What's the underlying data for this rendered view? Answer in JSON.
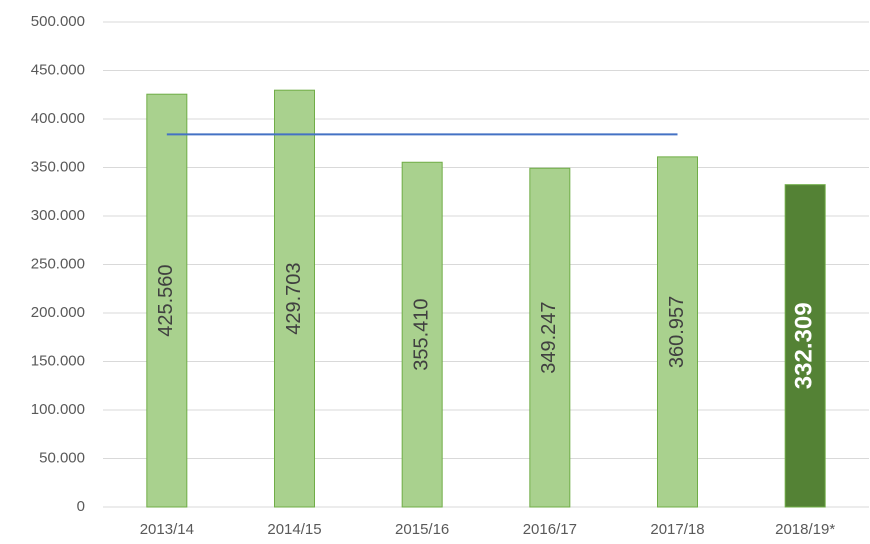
{
  "chart_data": {
    "type": "bar",
    "categories": [
      "2013/14",
      "2014/15",
      "2015/16",
      "2016/17",
      "2017/18",
      "2018/19*"
    ],
    "values": [
      425560,
      429703,
      355410,
      349247,
      360957,
      332309
    ],
    "value_labels": [
      "425.560",
      "429.703",
      "355.410",
      "349.247",
      "360.957",
      "332.309"
    ],
    "colors": [
      "#a9d18e",
      "#a9d18e",
      "#a9d18e",
      "#a9d18e",
      "#a9d18e",
      "#548235"
    ],
    "border_color": "#70ad47",
    "line_values": [
      384175,
      384175,
      384175,
      384175,
      384175,
      null
    ],
    "line_color": "#4472c4",
    "ylim": [
      0,
      500000
    ],
    "yticks": [
      0,
      {
        "value": 50000,
        "label": "50.000"
      },
      {
        "value": 100000,
        "label": "100.000"
      },
      {
        "value": 150000,
        "label": "150.000"
      },
      {
        "value": 200000,
        "label": "200.000"
      },
      {
        "value": 250000,
        "label": "250.000"
      },
      {
        "value": 300000,
        "label": "300.000"
      },
      {
        "value": 350000,
        "label": "350.000"
      },
      {
        "value": 400000,
        "label": "400.000"
      },
      {
        "value": 450000,
        "label": "450.000"
      },
      {
        "value": 500000,
        "label": "500.000"
      }
    ],
    "grid": true
  }
}
